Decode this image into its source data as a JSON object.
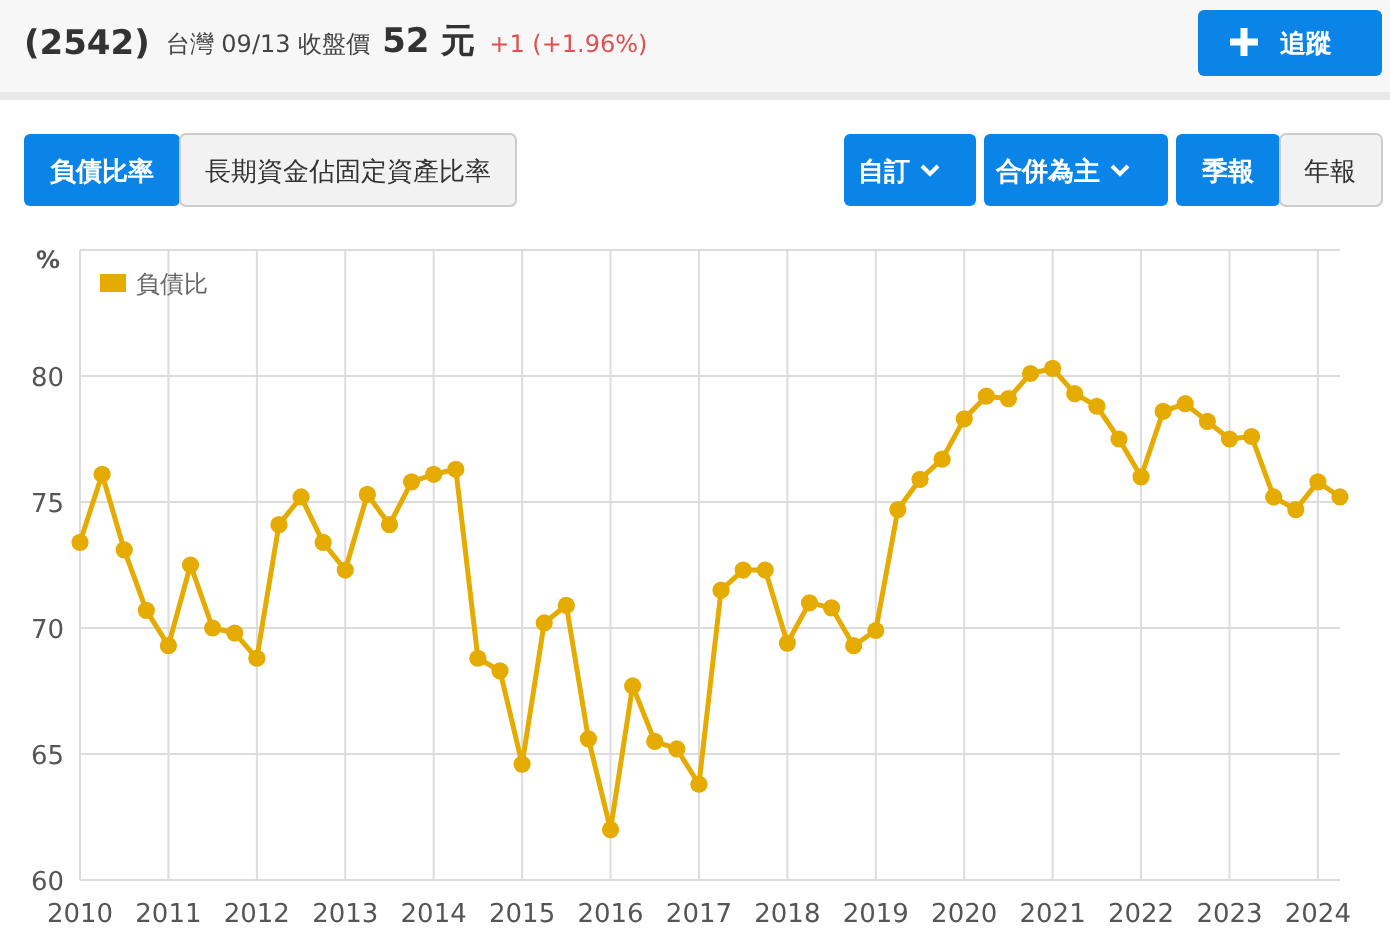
{
  "chart_data": {
    "type": "line",
    "ylabel": "%",
    "legend": "top left",
    "grid": true,
    "marker": "circle",
    "line_style": "solid",
    "annotations": [
      "(2542)",
      "台灣 09/13 收盤價",
      "52 元",
      "+1 (+1.96%)",
      "追蹤",
      "負債比率",
      "長期資金佔固定資產比率",
      "自訂",
      "合併為主",
      "季報",
      "年報"
    ],
    "xlim": [
      2010,
      2024.25
    ],
    "xticks": [
      2010,
      2011,
      2012,
      2013,
      2014,
      2015,
      2016,
      2017,
      2018,
      2019,
      2020,
      2021,
      2022,
      2023,
      2024
    ],
    "ylim": [
      60,
      85
    ],
    "yticks": [
      60,
      65,
      70,
      75,
      80,
      {
        "value": 85,
        "label": null
      }
    ],
    "x": [
      2010,
      2010.25,
      2010.5,
      2010.75,
      2011,
      2011.25,
      2011.5,
      2011.75,
      2012,
      2012.25,
      2012.5,
      2012.75,
      2013,
      2013.25,
      2013.5,
      2013.75,
      2014,
      2014.25,
      2014.5,
      2014.75,
      2015,
      2015.25,
      2015.5,
      2015.75,
      2016,
      2016.25,
      2016.5,
      2016.75,
      2017,
      2017.25,
      2017.5,
      2017.75,
      2018,
      2018.25,
      2018.5,
      2018.75,
      2019,
      2019.25,
      2019.5,
      2019.75,
      2020,
      2020.25,
      2020.5,
      2020.75,
      2021,
      2021.25,
      2021.5,
      2021.75,
      2022,
      2022.25,
      2022.5,
      2022.75,
      2023,
      2023.25,
      2023.5,
      2023.75,
      2024,
      2024.25
    ],
    "series": [
      {
        "name": "負債比",
        "color": "#e5ab00",
        "values": [
          73.4,
          76.1,
          73.1,
          70.7,
          69.3,
          72.5,
          70.0,
          69.8,
          68.8,
          74.1,
          75.2,
          73.4,
          72.3,
          75.3,
          74.1,
          75.8,
          76.1,
          76.3,
          68.8,
          68.3,
          64.6,
          70.2,
          70.9,
          65.6,
          62.0,
          67.7,
          65.5,
          65.2,
          63.8,
          71.5,
          72.3,
          72.3,
          69.4,
          71.0,
          70.8,
          69.3,
          69.9,
          74.7,
          75.9,
          76.7,
          78.3,
          79.2,
          79.1,
          80.1,
          80.3,
          79.3,
          78.8,
          77.5,
          76.0,
          78.6,
          78.9,
          78.2,
          77.5,
          77.6,
          75.2,
          74.7,
          75.8,
          75.2
        ]
      }
    ]
  }
}
